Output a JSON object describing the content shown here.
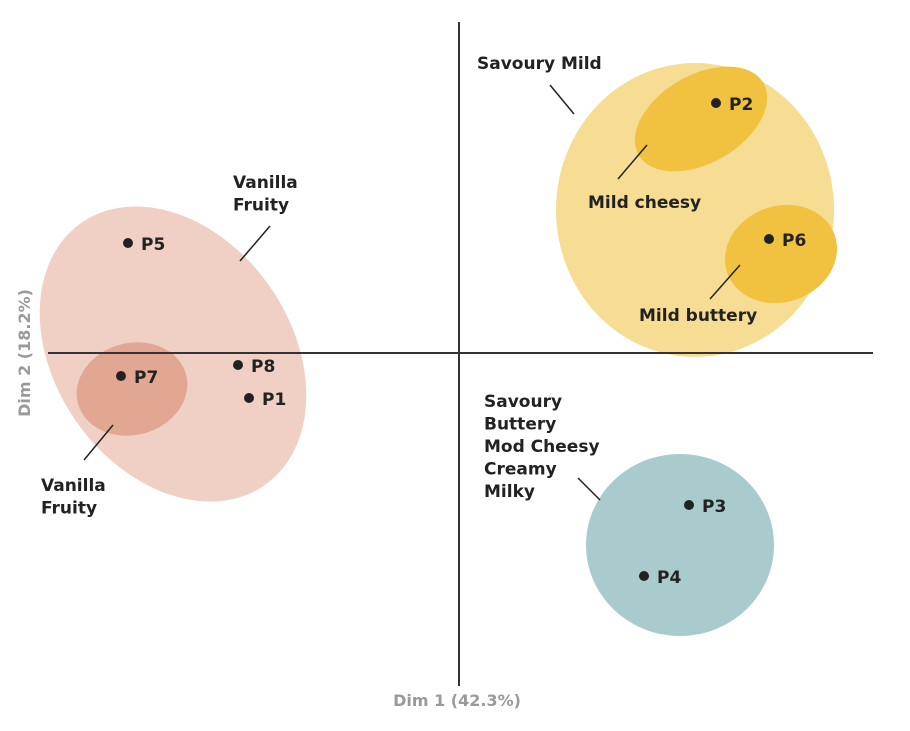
{
  "chart_data": {
    "type": "scatter",
    "title": "",
    "xlabel": "Dim 1 (42.3%)",
    "ylabel": "Dim 2 (18.2%)",
    "grid": false,
    "axes": "crossing at origin, no tick labels",
    "points": [
      {
        "label": "P1",
        "quadrant": "lower-left"
      },
      {
        "label": "P2",
        "quadrant": "upper-right"
      },
      {
        "label": "P3",
        "quadrant": "lower-right"
      },
      {
        "label": "P4",
        "quadrant": "lower-right"
      },
      {
        "label": "P5",
        "quadrant": "upper-left"
      },
      {
        "label": "P6",
        "quadrant": "upper-right"
      },
      {
        "label": "P7",
        "quadrant": "lower-left"
      },
      {
        "label": "P8",
        "quadrant": "lower-left"
      }
    ],
    "clusters": [
      {
        "id": "vanilla-big",
        "label_lines": [
          "Vanilla",
          "Fruity"
        ],
        "members": [
          "P5",
          "P7",
          "P8",
          "P1"
        ],
        "color": "#f0d0c5"
      },
      {
        "id": "vanilla-small",
        "label_lines": [
          "Vanilla",
          "Fruity"
        ],
        "members": [
          "P7"
        ],
        "color": "#e2a792"
      },
      {
        "id": "savoury-mild",
        "label_lines": [
          "Savoury Mild"
        ],
        "members": [
          "P2",
          "P6"
        ],
        "color": "#f6dd93"
      },
      {
        "id": "mild-cheesy",
        "label_lines": [
          "Mild cheesy"
        ],
        "members": [
          "P2"
        ],
        "color": "#f0c240"
      },
      {
        "id": "mild-buttery",
        "label_lines": [
          "Mild buttery"
        ],
        "members": [
          "P6"
        ],
        "color": "#f0c240"
      },
      {
        "id": "savoury-buttery",
        "label_lines": [
          "Savoury",
          "Buttery",
          "Mod Cheesy",
          "Creamy",
          "Milky"
        ],
        "members": [
          "P3",
          "P4"
        ],
        "color": "#a9cbcd"
      }
    ]
  }
}
